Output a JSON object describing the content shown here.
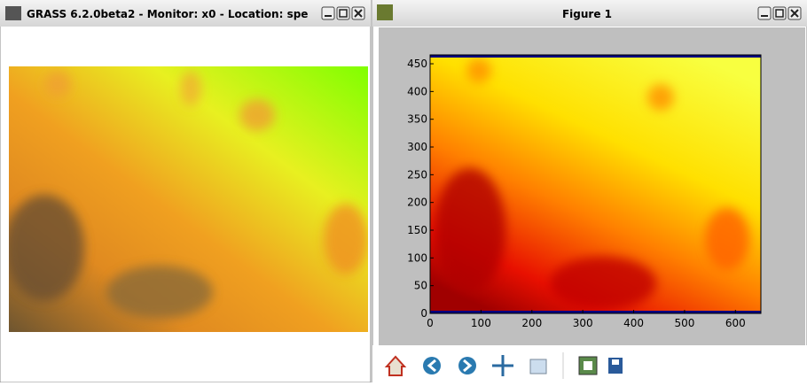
{
  "left_window": {
    "title": "GRASS 6.2.0beta2 - Monitor: x0 - Location: spe"
  },
  "right_window": {
    "title": "Figure 1",
    "figure": {
      "xlim": [
        0,
        650
      ],
      "ylim": [
        0,
        466
      ],
      "xticks": [
        0,
        100,
        200,
        300,
        400,
        500,
        600
      ],
      "yticks": [
        0,
        50,
        100,
        150,
        200,
        250,
        300,
        350,
        400,
        450
      ]
    }
  }
}
